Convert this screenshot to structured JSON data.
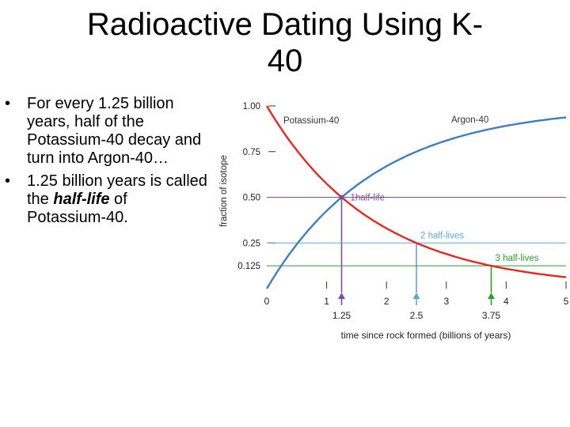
{
  "slide": {
    "title_line1": "Radioactive Dating Using K-",
    "title_line2": "40",
    "bullet1": "For every 1.25 billion years, half of the Potassium-40 decay and turn into Argon-40…",
    "bullet2_pre": "1.25 billion years is called the ",
    "bullet2_em": "half-life",
    "bullet2_post": " of Potassium-40."
  },
  "chart_data": {
    "type": "line",
    "xlabel": "time since rock formed (billions of years)",
    "ylabel": "fraction of isotope",
    "xlim": [
      0,
      5
    ],
    "ylim": [
      0,
      1
    ],
    "x_ticks": [
      "0",
      "1",
      "2",
      "3",
      "4",
      "5"
    ],
    "y_ticks": [
      {
        "value": 1.0,
        "label": "1.00"
      },
      {
        "value": 0.75,
        "label": "0.75"
      },
      {
        "value": 0.5,
        "label": "0.50"
      },
      {
        "value": 0.25,
        "label": "0.25"
      },
      {
        "value": 0.125,
        "label": "0.125"
      }
    ],
    "half_life": 1.25,
    "series": [
      {
        "name": "Potassium-40",
        "color": "#e8281e",
        "function": "0.5^(t/1.25)"
      },
      {
        "name": "Argon-40",
        "color": "#3d7fc0",
        "function": "1 - 0.5^(t/1.25)"
      }
    ],
    "annotations": [
      {
        "text": "1half-life",
        "x": 1.25,
        "y": 0.5,
        "color": "#7a4ea0",
        "marker_label": "1.25"
      },
      {
        "text": "2 half-lives",
        "x": 2.5,
        "y": 0.25,
        "color": "#5aa8d6",
        "marker_label": "2.5"
      },
      {
        "text": "3 half-lives",
        "x": 3.75,
        "y": 0.125,
        "color": "#2e9e2e",
        "marker_label": "3.75"
      }
    ]
  }
}
